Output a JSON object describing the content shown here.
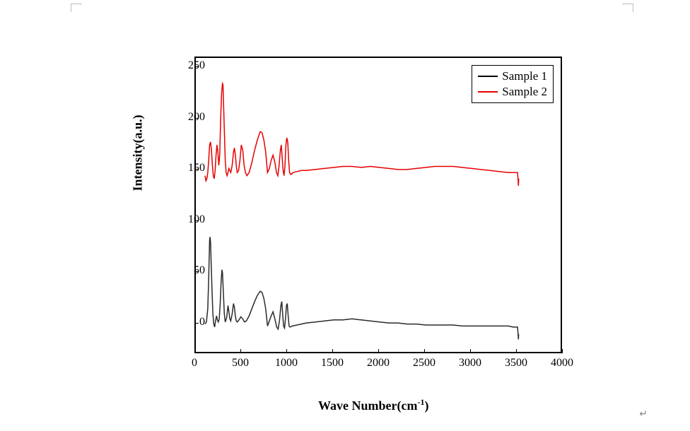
{
  "chart": {
    "type": "line",
    "xlabel": "Wave Number(cm",
    "xlabel_sup": "-1",
    "xlabel_close": ")",
    "ylabel": "Intensity(a.u.)",
    "label_fontsize": 18,
    "tick_fontsize": 16,
    "background_color": "#ffffff",
    "border_color": "#000000",
    "xlim": [
      0,
      4000
    ],
    "ylim": [
      -30,
      260
    ],
    "xticks": [
      0,
      500,
      1000,
      1500,
      2000,
      2500,
      3000,
      3500,
      4000
    ],
    "yticks": [
      0,
      50,
      100,
      150,
      200,
      250
    ],
    "legend": {
      "position": "top-right",
      "border_color": "#000000",
      "items": [
        {
          "label": "Sample 1",
          "color": "#000000"
        },
        {
          "label": "Sample 2",
          "color": "#e60000"
        }
      ]
    },
    "series": [
      {
        "name": "Sample 1",
        "color": "#2b2b2b",
        "line_width": 1.5,
        "data": [
          [
            100,
            0
          ],
          [
            115,
            2
          ],
          [
            130,
            15
          ],
          [
            140,
            45
          ],
          [
            150,
            82
          ],
          [
            155,
            85
          ],
          [
            160,
            80
          ],
          [
            175,
            35
          ],
          [
            185,
            10
          ],
          [
            195,
            0
          ],
          [
            205,
            -3
          ],
          [
            215,
            3
          ],
          [
            225,
            8
          ],
          [
            235,
            4
          ],
          [
            245,
            2
          ],
          [
            255,
            5
          ],
          [
            265,
            20
          ],
          [
            275,
            42
          ],
          [
            285,
            53
          ],
          [
            290,
            50
          ],
          [
            300,
            30
          ],
          [
            310,
            10
          ],
          [
            320,
            2
          ],
          [
            335,
            6
          ],
          [
            350,
            18
          ],
          [
            360,
            12
          ],
          [
            370,
            5
          ],
          [
            380,
            3
          ],
          [
            395,
            10
          ],
          [
            410,
            20
          ],
          [
            420,
            16
          ],
          [
            430,
            8
          ],
          [
            440,
            3
          ],
          [
            450,
            2
          ],
          [
            470,
            4
          ],
          [
            490,
            7
          ],
          [
            510,
            5
          ],
          [
            530,
            2
          ],
          [
            550,
            3
          ],
          [
            580,
            8
          ],
          [
            610,
            15
          ],
          [
            640,
            22
          ],
          [
            670,
            28
          ],
          [
            700,
            32
          ],
          [
            720,
            31
          ],
          [
            740,
            25
          ],
          [
            760,
            15
          ],
          [
            780,
            -2
          ],
          [
            800,
            3
          ],
          [
            820,
            8
          ],
          [
            840,
            12
          ],
          [
            860,
            5
          ],
          [
            880,
            -3
          ],
          [
            895,
            -5
          ],
          [
            910,
            3
          ],
          [
            925,
            18
          ],
          [
            935,
            22
          ],
          [
            945,
            10
          ],
          [
            955,
            -2
          ],
          [
            965,
            -4
          ],
          [
            975,
            5
          ],
          [
            985,
            18
          ],
          [
            995,
            20
          ],
          [
            1005,
            8
          ],
          [
            1015,
            -2
          ],
          [
            1025,
            -3
          ],
          [
            1050,
            -2
          ],
          [
            1100,
            -1
          ],
          [
            1150,
            0
          ],
          [
            1200,
            1
          ],
          [
            1300,
            2
          ],
          [
            1400,
            3
          ],
          [
            1500,
            4
          ],
          [
            1600,
            4
          ],
          [
            1700,
            5
          ],
          [
            1800,
            4
          ],
          [
            1900,
            3
          ],
          [
            2000,
            2
          ],
          [
            2100,
            1
          ],
          [
            2200,
            1
          ],
          [
            2300,
            0
          ],
          [
            2400,
            0
          ],
          [
            2500,
            -1
          ],
          [
            2600,
            -1
          ],
          [
            2700,
            -1
          ],
          [
            2800,
            -1
          ],
          [
            2900,
            -2
          ],
          [
            3000,
            -2
          ],
          [
            3100,
            -2
          ],
          [
            3200,
            -2
          ],
          [
            3300,
            -2
          ],
          [
            3400,
            -2
          ],
          [
            3450,
            -3
          ],
          [
            3480,
            -3
          ],
          [
            3500,
            -3
          ],
          [
            3505,
            -8
          ],
          [
            3510,
            -15
          ],
          [
            3512,
            -10
          ]
        ]
      },
      {
        "name": "Sample 2",
        "color": "#e60000",
        "line_width": 1.5,
        "data": [
          [
            100,
            145
          ],
          [
            110,
            140
          ],
          [
            120,
            142
          ],
          [
            130,
            148
          ],
          [
            140,
            160
          ],
          [
            150,
            175
          ],
          [
            160,
            178
          ],
          [
            170,
            170
          ],
          [
            180,
            155
          ],
          [
            190,
            145
          ],
          [
            200,
            142
          ],
          [
            210,
            150
          ],
          [
            220,
            165
          ],
          [
            230,
            175
          ],
          [
            240,
            168
          ],
          [
            250,
            155
          ],
          [
            260,
            165
          ],
          [
            270,
            200
          ],
          [
            280,
            225
          ],
          [
            290,
            235
          ],
          [
            295,
            234
          ],
          [
            300,
            220
          ],
          [
            310,
            190
          ],
          [
            320,
            160
          ],
          [
            330,
            148
          ],
          [
            340,
            145
          ],
          [
            350,
            148
          ],
          [
            360,
            152
          ],
          [
            370,
            150
          ],
          [
            380,
            148
          ],
          [
            395,
            155
          ],
          [
            410,
            168
          ],
          [
            420,
            172
          ],
          [
            430,
            165
          ],
          [
            440,
            155
          ],
          [
            450,
            148
          ],
          [
            465,
            150
          ],
          [
            480,
            160
          ],
          [
            495,
            175
          ],
          [
            510,
            170
          ],
          [
            525,
            155
          ],
          [
            540,
            148
          ],
          [
            555,
            145
          ],
          [
            580,
            148
          ],
          [
            610,
            158
          ],
          [
            640,
            170
          ],
          [
            670,
            180
          ],
          [
            700,
            188
          ],
          [
            720,
            187
          ],
          [
            740,
            180
          ],
          [
            760,
            168
          ],
          [
            780,
            148
          ],
          [
            800,
            152
          ],
          [
            820,
            160
          ],
          [
            840,
            165
          ],
          [
            860,
            158
          ],
          [
            878,
            148
          ],
          [
            892,
            145
          ],
          [
            906,
            155
          ],
          [
            920,
            170
          ],
          [
            930,
            175
          ],
          [
            940,
            162
          ],
          [
            950,
            150
          ],
          [
            960,
            145
          ],
          [
            970,
            155
          ],
          [
            980,
            175
          ],
          [
            990,
            182
          ],
          [
            1000,
            178
          ],
          [
            1010,
            160
          ],
          [
            1020,
            148
          ],
          [
            1035,
            146
          ],
          [
            1060,
            148
          ],
          [
            1100,
            149
          ],
          [
            1150,
            150
          ],
          [
            1200,
            150
          ],
          [
            1300,
            151
          ],
          [
            1400,
            152
          ],
          [
            1500,
            153
          ],
          [
            1600,
            154
          ],
          [
            1700,
            154
          ],
          [
            1800,
            153
          ],
          [
            1900,
            154
          ],
          [
            2000,
            153
          ],
          [
            2100,
            152
          ],
          [
            2200,
            151
          ],
          [
            2300,
            151
          ],
          [
            2400,
            152
          ],
          [
            2500,
            153
          ],
          [
            2600,
            154
          ],
          [
            2700,
            154
          ],
          [
            2800,
            154
          ],
          [
            2900,
            153
          ],
          [
            3000,
            152
          ],
          [
            3100,
            151
          ],
          [
            3200,
            150
          ],
          [
            3300,
            149
          ],
          [
            3400,
            148
          ],
          [
            3450,
            148
          ],
          [
            3480,
            148
          ],
          [
            3500,
            148
          ],
          [
            3505,
            143
          ],
          [
            3510,
            135
          ],
          [
            3513,
            142
          ]
        ]
      }
    ]
  },
  "return_symbol": "↵"
}
